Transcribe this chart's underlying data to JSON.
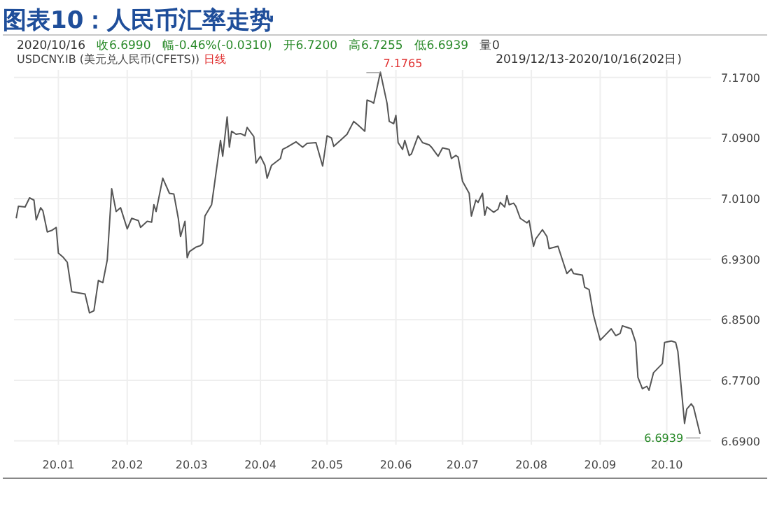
{
  "chart_data": {
    "type": "line",
    "title": "图表10：人民币汇率走势",
    "annotations": [
      "2020/10/16",
      "收6.6990",
      "幅-0.46%(-0.0310)",
      "开6.7200",
      "高6.7255",
      "低6.6939",
      "量0",
      "USDCNY.IB (美元兑人民币(CFETS))",
      "日线",
      "2019/12/13-2020/10/16(202日)",
      {
        "text": "7.1765",
        "x": "2020-05-25",
        "y": 7.1765
      },
      {
        "text": "6.6939",
        "x": "2020-10-16",
        "y": 6.6939
      }
    ],
    "series": [
      {
        "color": "#555555",
        "x": [
          "2019-12-13",
          "2019-12-14",
          "2019-12-17",
          "2019-12-18",
          "2019-12-19",
          "2019-12-21",
          "2019-12-22",
          "2019-12-24",
          "2019-12-25",
          "2019-12-27",
          "2019-12-29",
          "2019-12-31",
          "2020-01-01",
          "2020-01-03",
          "2020-01-05",
          "2020-01-07",
          "2020-01-13",
          "2020-01-15",
          "2020-01-17",
          "2020-01-19",
          "2020-01-21",
          "2020-01-23",
          "2020-01-25",
          "2020-01-27",
          "2020-01-29",
          "2020-02-01",
          "2020-02-03",
          "2020-02-06",
          "2020-02-07",
          "2020-02-10",
          "2020-02-12",
          "2020-02-13",
          "2020-02-14",
          "2020-02-17",
          "2020-02-20",
          "2020-02-22",
          "2020-02-24",
          "2020-02-25",
          "2020-02-27",
          "2020-02-28",
          "2020-02-29",
          "2020-03-03",
          "2020-03-05",
          "2020-03-06",
          "2020-03-07",
          "2020-03-10",
          "2020-03-11",
          "2020-03-14",
          "2020-03-15",
          "2020-03-17",
          "2020-03-18",
          "2020-03-19",
          "2020-03-21",
          "2020-03-23",
          "2020-03-25",
          "2020-03-26",
          "2020-03-29",
          "2020-03-30",
          "2020-04-01",
          "2020-04-03",
          "2020-04-04",
          "2020-04-06",
          "2020-04-10",
          "2020-04-11",
          "2020-04-13",
          "2020-04-17",
          "2020-04-20",
          "2020-04-22",
          "2020-04-26",
          "2020-04-29",
          "2020-05-01",
          "2020-05-03",
          "2020-05-04",
          "2020-05-07",
          "2020-05-10",
          "2020-05-13",
          "2020-05-15",
          "2020-05-18",
          "2020-05-19",
          "2020-05-21",
          "2020-05-22",
          "2020-05-25",
          "2020-05-28",
          "2020-05-29",
          "2020-05-31",
          "2020-06-01",
          "2020-06-02",
          "2020-06-04",
          "2020-06-05",
          "2020-06-07",
          "2020-06-08",
          "2020-06-11",
          "2020-06-13",
          "2020-06-16",
          "2020-06-17",
          "2020-06-20",
          "2020-06-22",
          "2020-06-25",
          "2020-06-26",
          "2020-06-28",
          "2020-06-29",
          "2020-07-01",
          "2020-07-04",
          "2020-07-05",
          "2020-07-07",
          "2020-07-08",
          "2020-07-10",
          "2020-07-11",
          "2020-07-12",
          "2020-07-15",
          "2020-07-17",
          "2020-07-18",
          "2020-07-20",
          "2020-07-21",
          "2020-07-22",
          "2020-07-24",
          "2020-07-25",
          "2020-07-27",
          "2020-07-30",
          "2020-07-31",
          "2020-08-02",
          "2020-08-03",
          "2020-08-06",
          "2020-08-08",
          "2020-08-09",
          "2020-08-13",
          "2020-08-14",
          "2020-08-17",
          "2020-08-19",
          "2020-08-20",
          "2020-08-24",
          "2020-08-25",
          "2020-08-27",
          "2020-08-29",
          "2020-09-01",
          "2020-09-03",
          "2020-09-06",
          "2020-09-08",
          "2020-09-10",
          "2020-09-11",
          "2020-09-15",
          "2020-09-17",
          "2020-09-18",
          "2020-09-20",
          "2020-09-22",
          "2020-09-23",
          "2020-09-25",
          "2020-09-29",
          "2020-09-30",
          "2020-10-03",
          "2020-10-05",
          "2020-10-06",
          "2020-10-09",
          "2020-10-10",
          "2020-10-12",
          "2020-10-13",
          "2020-10-16"
        ],
        "values": [
          6.984,
          7.0,
          6.999,
          7.005,
          7.011,
          7.008,
          6.982,
          6.998,
          6.994,
          6.966,
          6.968,
          6.972,
          6.938,
          6.933,
          6.926,
          6.887,
          6.884,
          6.859,
          6.862,
          6.902,
          6.899,
          6.929,
          7.023,
          6.993,
          6.998,
          6.97,
          6.984,
          6.981,
          6.972,
          6.98,
          6.979,
          7.002,
          6.993,
          7.037,
          7.017,
          7.016,
          6.984,
          6.96,
          6.98,
          6.932,
          6.94,
          6.946,
          6.948,
          6.951,
          6.987,
          7.002,
          7.023,
          7.087,
          7.066,
          7.118,
          7.078,
          7.099,
          7.095,
          7.096,
          7.093,
          7.104,
          7.092,
          7.057,
          7.066,
          7.054,
          7.037,
          7.054,
          7.063,
          7.075,
          7.078,
          7.085,
          7.078,
          7.083,
          7.084,
          7.053,
          7.093,
          7.09,
          7.079,
          7.087,
          7.095,
          7.112,
          7.107,
          7.099,
          7.14,
          7.138,
          7.136,
          7.177,
          7.136,
          7.112,
          7.109,
          7.12,
          7.084,
          7.075,
          7.087,
          7.067,
          7.069,
          7.093,
          7.084,
          7.081,
          7.078,
          7.066,
          7.077,
          7.075,
          7.063,
          7.067,
          7.065,
          7.033,
          7.017,
          6.987,
          7.008,
          7.005,
          7.017,
          6.988,
          6.999,
          6.992,
          6.996,
          7.005,
          6.999,
          7.014,
          7.002,
          7.004,
          7.0,
          6.984,
          6.978,
          6.981,
          6.947,
          6.957,
          6.969,
          6.96,
          6.944,
          6.947,
          6.938,
          6.911,
          6.917,
          6.911,
          6.909,
          6.893,
          6.89,
          6.856,
          6.823,
          6.829,
          6.838,
          6.829,
          6.832,
          6.842,
          6.838,
          6.82,
          6.774,
          6.759,
          6.762,
          6.757,
          6.78,
          6.792,
          6.82,
          6.822,
          6.82,
          6.808,
          6.713,
          6.732,
          6.739,
          6.735,
          6.699
        ]
      }
    ],
    "xlim": [
      "2019-12-12",
      "2020-10-21"
    ],
    "xticks": [
      {
        "value": "2020-01-01",
        "label": "20.01"
      },
      {
        "value": "2020-02-01",
        "label": "20.02"
      },
      {
        "value": "2020-03-01",
        "label": "20.03"
      },
      {
        "value": "2020-04-01",
        "label": "20.04"
      },
      {
        "value": "2020-05-01",
        "label": "20.05"
      },
      {
        "value": "2020-06-01",
        "label": "20.06"
      },
      {
        "value": "2020-07-01",
        "label": "20.07"
      },
      {
        "value": "2020-08-01",
        "label": "20.08"
      },
      {
        "value": "2020-09-01",
        "label": "20.09"
      },
      {
        "value": "2020-10-01",
        "label": "20.10"
      }
    ],
    "ylim": [
      6.685,
      7.18
    ],
    "yticks": [
      {
        "value": 6.69,
        "label": "6.6900"
      },
      {
        "value": 6.77,
        "label": "6.7700"
      },
      {
        "value": 6.85,
        "label": "6.8500"
      },
      {
        "value": 6.93,
        "label": "6.9300"
      },
      {
        "value": 7.01,
        "label": "7.0100"
      },
      {
        "value": 7.09,
        "label": "7.0900"
      },
      {
        "value": 7.17,
        "label": "7.1700"
      }
    ],
    "grid": true,
    "marker": "none",
    "line_style": "solid"
  }
}
